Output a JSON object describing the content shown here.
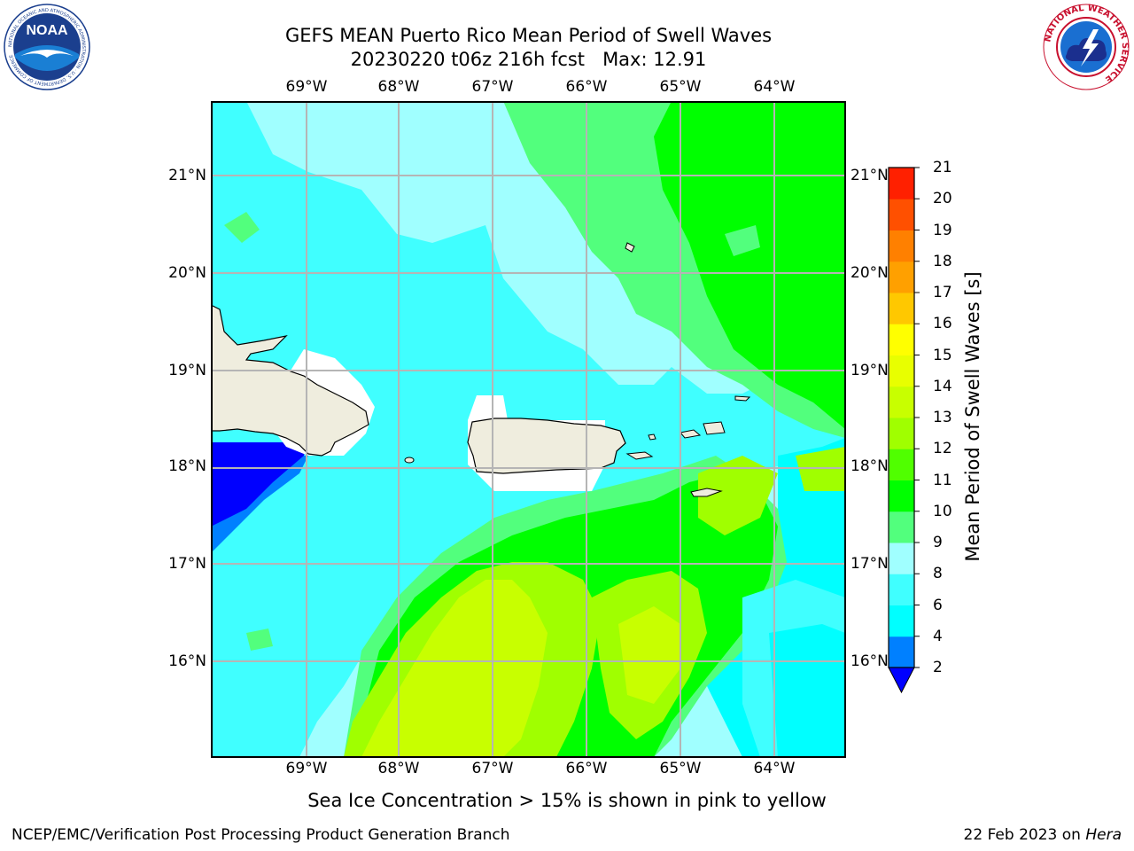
{
  "header": {
    "title_line1": "GEFS MEAN Puerto Rico Mean Period of Swell Waves",
    "title_line2": "20230220 t06z 216h fcst   Max: 12.91"
  },
  "logos": {
    "left": {
      "name": "NOAA",
      "ring_text": "NATIONAL OCEANIC AND ATMOSPHERIC ADMINISTRATION · U.S. DEPARTMENT OF COMMERCE"
    },
    "right": {
      "name": "NATIONAL WEATHER SERVICE"
    }
  },
  "map": {
    "lon_labels": [
      "69°W",
      "68°W",
      "67°W",
      "66°W",
      "65°W",
      "64°W"
    ],
    "lat_labels": [
      "21°N",
      "20°N",
      "19°N",
      "18°N",
      "17°N",
      "16°N"
    ],
    "lon_range": [
      -70.0,
      -63.3
    ],
    "lat_range": [
      15.0,
      21.75
    ],
    "grid": true,
    "land_color": "#efedde",
    "field": "Mean Period of Swell Waves",
    "field_max": 12.91
  },
  "colorbar": {
    "label": "Mean Period of Swell Waves [s]",
    "levels": [
      "2",
      "4",
      "6",
      "8",
      "9",
      "10",
      "11",
      "12",
      "13",
      "14",
      "15",
      "16",
      "17",
      "18",
      "19",
      "20",
      "21"
    ],
    "colors": [
      "#0000ff",
      "#0080ff",
      "#00ffff",
      "#40ffff",
      "#a0ffff",
      "#52ff7d",
      "#00ff00",
      "#50ff00",
      "#a0ff00",
      "#c8ff00",
      "#e8ff00",
      "#ffff00",
      "#ffc800",
      "#ffa000",
      "#ff8000",
      "#ff5000",
      "#ff2000",
      "#ff0000"
    ],
    "under_color": "#0000ff"
  },
  "caption": "Sea Ice Concentration > 15% is shown in pink to yellow",
  "footer": {
    "left": "NCEP/EMC/Verification Post Processing Product Generation Branch",
    "right_date": "22 Feb 2023 on ",
    "right_host": "Hera"
  }
}
